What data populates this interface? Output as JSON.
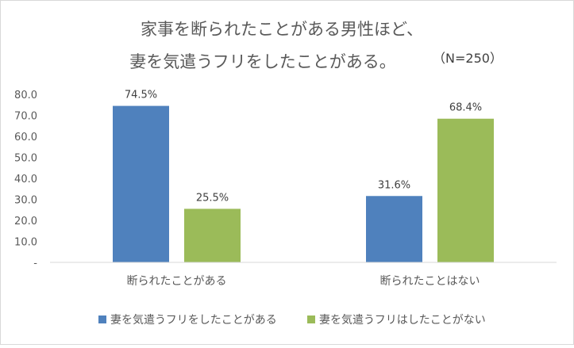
{
  "chart_data": {
    "type": "bar",
    "title_lines": [
      "家事を断られたことがある男性ほど、",
      "妻を気遣うフリをしたことがある。"
    ],
    "sample_label": "（N=250）",
    "categories": [
      "断られたことがある",
      "断られたことはない"
    ],
    "series": [
      {
        "name": "妻を気遣うフリをしたことがある",
        "values": [
          74.5,
          31.6
        ],
        "color": "#4f81bd"
      },
      {
        "name": "妻を気遣うフリはしたことがない",
        "values": [
          25.5,
          68.4
        ],
        "color": "#9bbb59"
      }
    ],
    "data_label_suffix": "%",
    "ylim": [
      0,
      80
    ],
    "y_ticks": [
      "80.0",
      "70.0",
      "60.0",
      "50.0",
      "40.0",
      "30.0",
      "20.0",
      "10.0",
      "-"
    ],
    "grid": false,
    "legend_position": "bottom"
  }
}
